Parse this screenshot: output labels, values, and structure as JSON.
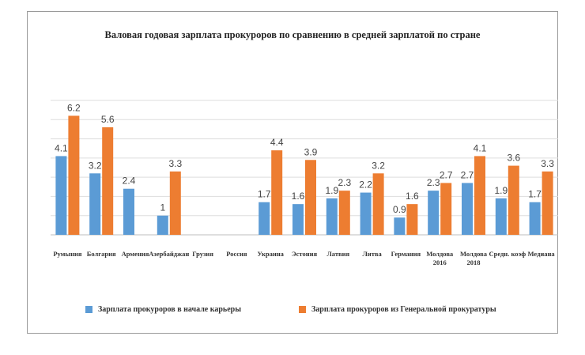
{
  "chart_data": {
    "type": "bar",
    "title": "Валовая годовая зарплата прокуроров по сравнению в средней зарплатой по стране",
    "categories": [
      [
        "Румыния"
      ],
      [
        "Болгария"
      ],
      [
        "Армения"
      ],
      [
        "Азербайджан"
      ],
      [
        "Грузия"
      ],
      [
        "Россия"
      ],
      [
        "Украина"
      ],
      [
        "Эстония"
      ],
      [
        "Латвия"
      ],
      [
        "Литва"
      ],
      [
        "Германия"
      ],
      [
        "Молдова",
        "2016"
      ],
      [
        "Молдова",
        "2018"
      ],
      [
        "Средн. коэф"
      ],
      [
        "Медиана"
      ]
    ],
    "series": [
      {
        "name": "Зарплата прокуроров в начале карьеры",
        "color": "#5b9bd5",
        "values": [
          4.1,
          3.2,
          2.4,
          1,
          null,
          null,
          1.7,
          1.6,
          1.9,
          2.2,
          0.9,
          2.3,
          2.7,
          1.9,
          1.7
        ],
        "labels": [
          "4.1",
          "3.2",
          "2.4",
          "1",
          "",
          "",
          "1.7",
          "1.6",
          "1.9",
          "2.2",
          "0.9",
          "2.3",
          "2.7",
          "1.9",
          "1.7"
        ]
      },
      {
        "name": "Зарплата прокуроров из Генеральной прокуратуры",
        "color": "#ed7d31",
        "values": [
          6.2,
          5.6,
          null,
          3.3,
          null,
          null,
          4.4,
          3.9,
          2.3,
          3.2,
          1.6,
          2.7,
          4.1,
          3.6,
          3.3
        ],
        "labels": [
          "6.2",
          "5.6",
          "",
          "3.3",
          "",
          "",
          "4.4",
          "3.9",
          "2.3",
          "3.2",
          "1.6",
          "2.7",
          "4.1",
          "3.6",
          "3.3"
        ]
      }
    ],
    "ylim": [
      0,
      7
    ],
    "grid": true,
    "legend_position": "bottom"
  }
}
